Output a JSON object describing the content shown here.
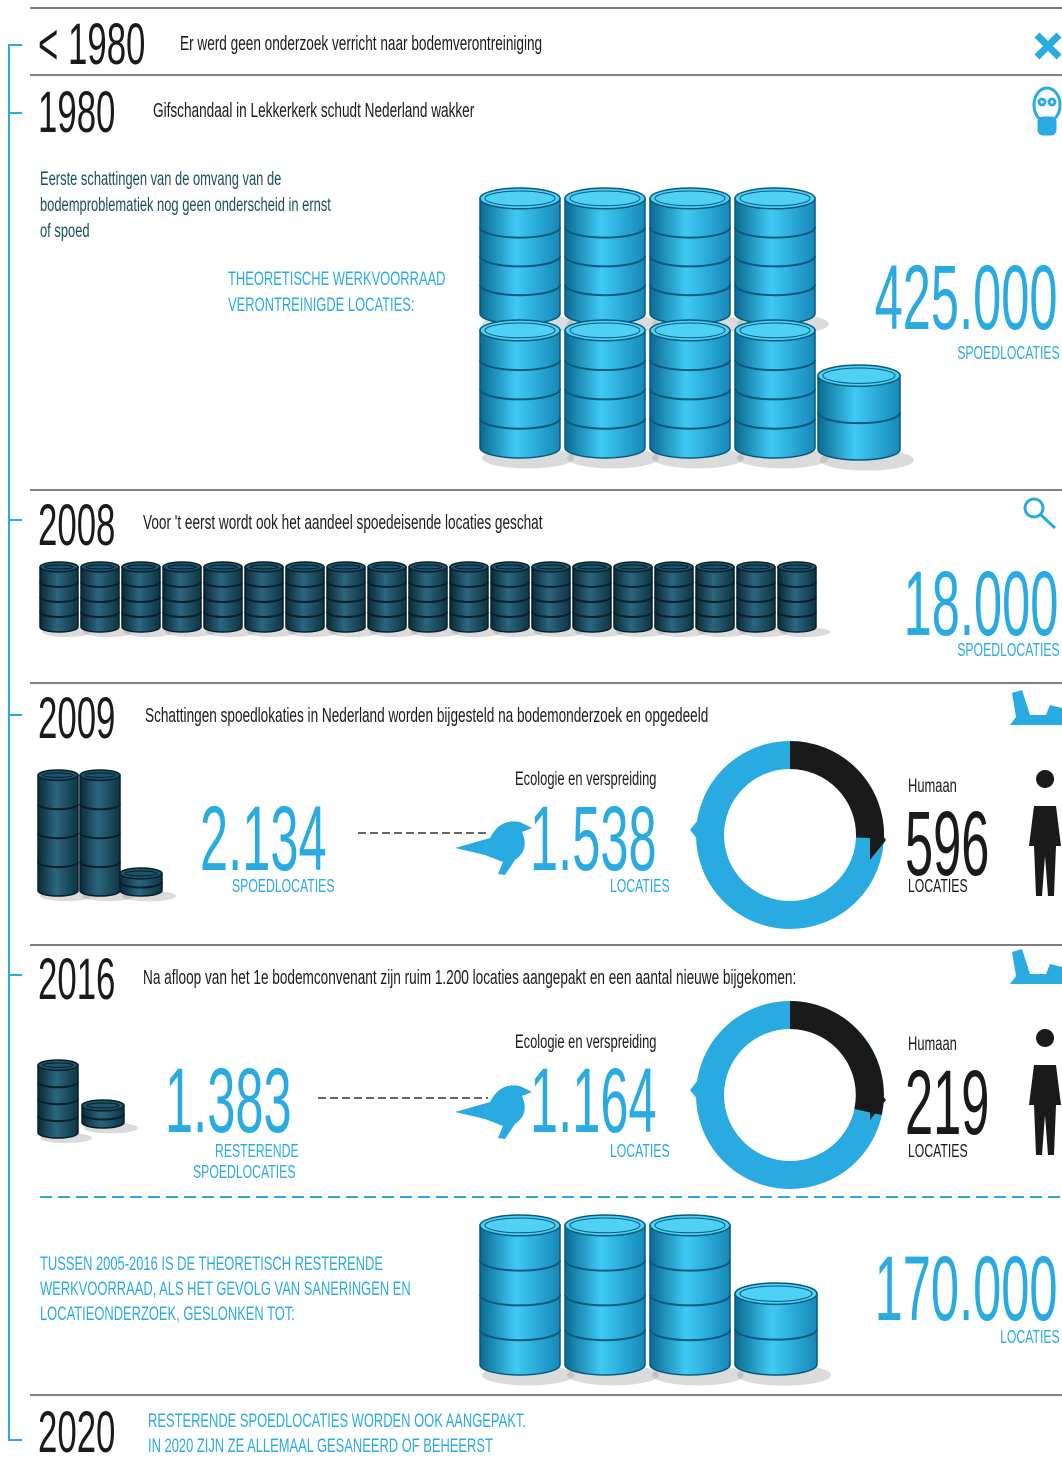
{
  "timeline": [
    {
      "year": "< 1980",
      "headline": "Er werd geen onderzoek verricht naar bodemverontreiniging"
    },
    {
      "year": "1980",
      "headline": "Gifschandaal in Lekkerkerk schudt Nederland wakker",
      "description": [
        "Eerste schattingen van de omvang van de",
        "bodemproblematiek nog geen onderscheid in ernst",
        "of spoed"
      ],
      "label": [
        "THEORETISCHE WERKVOORRAAD",
        "VERONTREINIGDE LOCATIES:"
      ],
      "figure": "425.000",
      "unit": "SPOEDLOCATIES"
    },
    {
      "year": "2008",
      "headline": "Voor 't eerst wordt ook het aandeel spoedeisende locaties geschat",
      "figure": "18.000",
      "unit": "SPOEDLOCATIES"
    },
    {
      "year": "2009",
      "headline": "Schattingen spoedlokaties in Nederland worden bijgesteld na bodemonderzoek en opgedeeld",
      "total": {
        "figure": "2.134",
        "unit": [
          "SPOEDLOCATIES"
        ]
      },
      "ecology": {
        "label": "Ecologie en verspreiding",
        "figure": "1.538",
        "unit": "LOCATIES"
      },
      "human": {
        "label": "Humaan",
        "figure": "596",
        "unit": "LOCATIES"
      }
    },
    {
      "year": "2016",
      "headline": "Na afloop van het 1e bodemconvenant zijn ruim 1.200 locaties aangepakt en een aantal nieuwe bijgekomen:",
      "total": {
        "figure": "1.383",
        "unit": [
          "RESTERENDE",
          "SPOEDLOCATIES"
        ]
      },
      "ecology": {
        "label": "Ecologie en verspreiding",
        "figure": "1.164",
        "unit": "LOCATIES"
      },
      "human": {
        "label": "Humaan",
        "figure": "219",
        "unit": "LOCATIES"
      },
      "summary": {
        "label": [
          "TUSSEN 2005-2016 IS DE THEORETISCH RESTERENDE",
          "WERKVOORRAAD, ALS HET GEVOLG VAN SANERINGEN EN",
          "LOCATIEONDERZOEK, GESLONKEN TOT:"
        ],
        "figure": "170.000",
        "unit": "LOCATIES"
      }
    },
    {
      "year": "2020",
      "headline": [
        "RESTERENDE SPOEDLOCATIES WORDEN OOK AANGEPAKT.",
        "IN 2020 ZIJN ZE ALLEMAAL GESANEERD OF BEHEERST"
      ]
    }
  ]
}
